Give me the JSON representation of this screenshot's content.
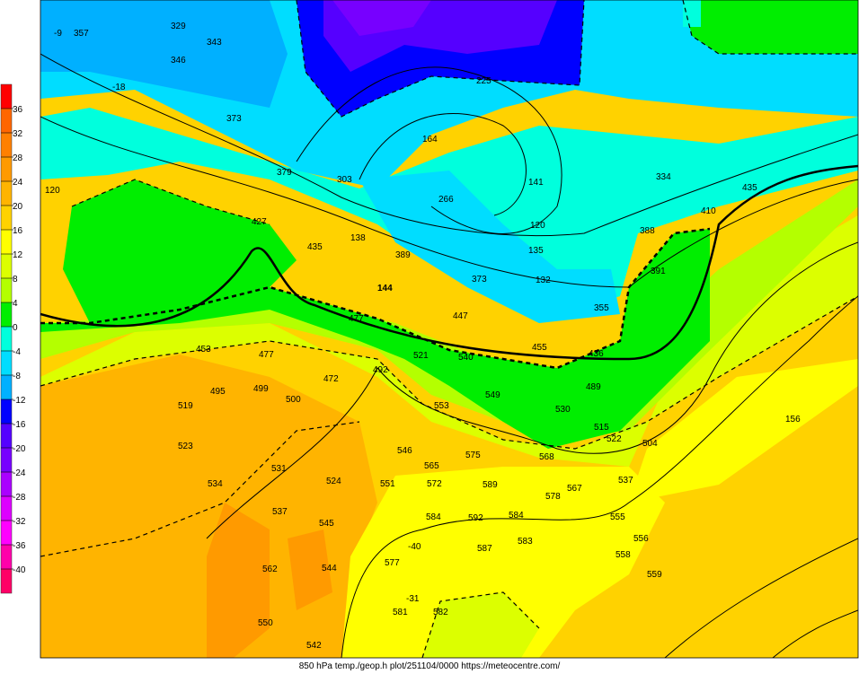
{
  "caption": "850 hPa temp./geop.h plot/251104/0000 https://meteocentre.com/",
  "colorbar": {
    "ticks": [
      "36",
      "32",
      "28",
      "24",
      "20",
      "16",
      "12",
      "8",
      "4",
      "0",
      "-4",
      "-8",
      "-12",
      "-16",
      "-20",
      "-24",
      "-28",
      "-32",
      "-36",
      "-40"
    ],
    "colors": [
      "#ff0000",
      "#ff6600",
      "#ff8000",
      "#ff9a00",
      "#ffb400",
      "#ffd200",
      "#ffff00",
      "#dcff00",
      "#b4ff00",
      "#00ee00",
      "#00ffdd",
      "#00ddff",
      "#00b0ff",
      "#0000ff",
      "#5500ff",
      "#7700ff",
      "#aa00ff",
      "#dd00ff",
      "#ff00ff",
      "#ff00aa",
      "#ff0066"
    ]
  },
  "station_labels": [
    "-9",
    "357",
    "329",
    "343",
    "346",
    "-18",
    "373",
    "379",
    "303",
    "138",
    "225",
    "164",
    "141",
    "120",
    "135",
    "132",
    "266",
    "389",
    "373",
    "334",
    "435",
    "410",
    "391",
    "388",
    "355",
    "447",
    "455",
    "436",
    "477",
    "435",
    "427",
    "453",
    "477",
    "472",
    "492",
    "521",
    "540",
    "549",
    "553",
    "530",
    "489",
    "515",
    "522",
    "504",
    "546",
    "565",
    "575",
    "568",
    "589",
    "572",
    "551",
    "537",
    "524",
    "531",
    "523",
    "495",
    "519",
    "499",
    "500",
    "534",
    "537",
    "545",
    "562",
    "544",
    "550",
    "542",
    "577",
    "584",
    "592",
    "581",
    "582",
    "584",
    "587",
    "583",
    "578",
    "567",
    "555",
    "556",
    "559",
    "558",
    "156",
    "120",
    "144",
    "-40",
    "-31"
  ]
}
